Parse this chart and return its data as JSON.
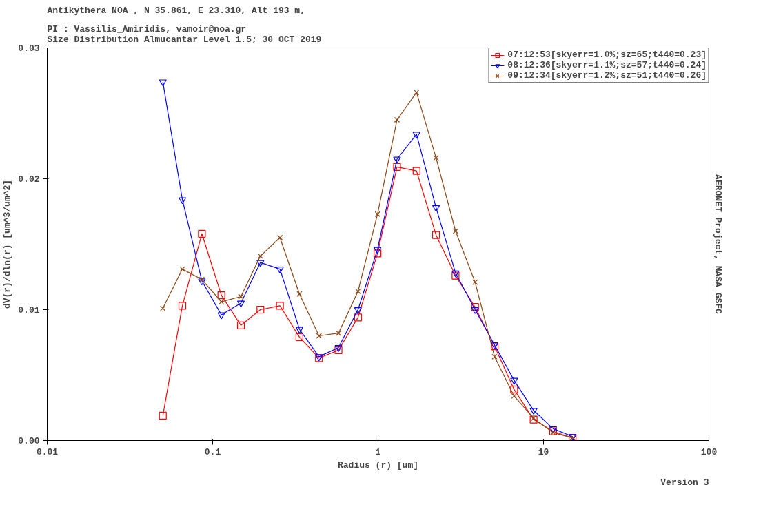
{
  "chart_data": {
    "type": "line",
    "title": "Antikythera_NOA , N 35.861, E  23.310, Alt 193 m,",
    "subtitle": "PI : Vassilis_Amiridis, vamoir@noa.gr\nSize Distribution Almucantar Level 1.5; 30 OCT 2019",
    "xlabel": "Radius (r) [um]",
    "ylabel": "dV(r)/dln(r) [um^3/um^2]",
    "annotations": [
      "AERONET Project, NASA GSFC",
      "Version 3"
    ],
    "x": [
      0.05,
      0.065604,
      0.086077,
      0.112939,
      0.148184,
      0.194429,
      0.255105,
      0.334716,
      0.439173,
      0.576227,
      0.756052,
      0.991996,
      1.301571,
      1.707757,
      2.240702,
      2.939966,
      3.857452,
      5.06126,
      6.640745,
      8.713145,
      11.432287,
      15.0
    ],
    "series": [
      {
        "name": "07:12:53[skyerr=1.0%;sz=65;t440=0.23]",
        "color": "#ff0000",
        "marker": "square",
        "values": [
          0.0019,
          0.0103,
          0.0158,
          0.0111,
          0.0088,
          0.01,
          0.0103,
          0.0079,
          0.0063,
          0.0069,
          0.0094,
          0.0143,
          0.0209,
          0.0206,
          0.0157,
          0.0126,
          0.0102,
          0.0072,
          0.0039,
          0.0016,
          0.0007,
          0.0002
        ]
      },
      {
        "name": "08:12:36[skyerr=1.1%;sz=57;t440=0.24]",
        "color": "#0000ff",
        "marker": "triangle",
        "values": [
          0.0274,
          0.0184,
          0.0122,
          0.0096,
          0.0105,
          0.0136,
          0.0131,
          0.0085,
          0.0064,
          0.0071,
          0.01,
          0.0146,
          0.0215,
          0.0234,
          0.0178,
          0.0128,
          0.01,
          0.0073,
          0.0046,
          0.0023,
          0.0009,
          0.0003
        ]
      },
      {
        "name": "09:12:34[skyerr=1.2%;sz=51;t440=0.26]",
        "color": "#8b4513",
        "marker": "cross",
        "values": [
          0.0101,
          0.0131,
          0.0123,
          0.0106,
          0.011,
          0.0141,
          0.0155,
          0.0112,
          0.008,
          0.0082,
          0.0114,
          0.0173,
          0.0245,
          0.0266,
          0.0216,
          0.016,
          0.0121,
          0.0064,
          0.0034,
          0.0017,
          0.0006,
          0.0002
        ]
      }
    ],
    "log": "x",
    "xlim": [
      0.01,
      100
    ],
    "ylim": [
      0,
      0.03
    ],
    "xticks": [
      0.01,
      0.1,
      1,
      10,
      100
    ],
    "yticks": [
      {
        "value": 0,
        "label": "0.00"
      },
      0.01,
      0.02,
      0.03
    ],
    "grid": false,
    "legend": "top right",
    "line_style": "solid"
  }
}
